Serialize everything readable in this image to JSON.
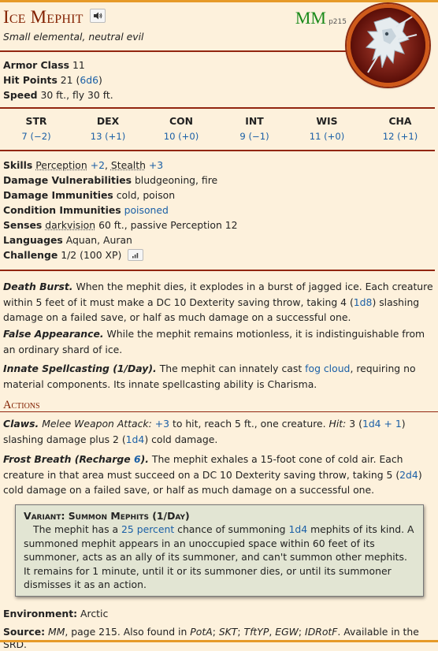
{
  "header": {
    "name": "Ice Mephit",
    "subtitle": "Small elemental, neutral evil",
    "source_abbr": "MM",
    "source_page": "p215",
    "sound_icon": "speaker-icon",
    "token_icon": "ice-mephit-token"
  },
  "basics": [
    {
      "label": "Armor Class",
      "value": "11"
    },
    {
      "label": "Hit Points",
      "value": "21 (",
      "link": "6d6",
      "suffix": ")"
    },
    {
      "label": "Speed",
      "value": "30 ft., fly 30 ft."
    }
  ],
  "abilities": [
    {
      "name": "STR",
      "value": "7 (−2)"
    },
    {
      "name": "DEX",
      "value": "13 (+1)"
    },
    {
      "name": "CON",
      "value": "10 (+0)"
    },
    {
      "name": "INT",
      "value": "9 (−1)"
    },
    {
      "name": "WIS",
      "value": "11 (+0)"
    },
    {
      "name": "CHA",
      "value": "12 (+1)"
    }
  ],
  "details": {
    "skills_label": "Skills",
    "skill1": "Perception",
    "skill1_mod": "+2",
    "skill2": "Stealth",
    "skill2_mod": "+3",
    "vuln_label": "Damage Vulnerabilities",
    "vuln_value": "bludgeoning, fire",
    "immune_label": "Damage Immunities",
    "immune_value": "cold, poison",
    "cond_label": "Condition Immunities",
    "cond_value": "poisoned",
    "senses_label": "Senses",
    "senses_link": "darkvision",
    "senses_value": "60 ft., passive Perception 12",
    "lang_label": "Languages",
    "lang_value": "Aquan, Auran",
    "cr_label": "Challenge",
    "cr_value": "1/2 (100 XP)"
  },
  "traits": {
    "death_head": "Death Burst.",
    "death_a": "When the mephit dies, it explodes in a burst of jagged ice. Each creature within 5 feet of it must make a DC 10 Dexterity saving throw, taking 4 (",
    "death_roll": "1d8",
    "death_b": ") slashing damage on a failed save, or half as much damage on a successful one.",
    "false_head": "False Appearance.",
    "false_text": "While the mephit remains motionless, it is indistinguishable from an ordinary shard of ice.",
    "innate_head": "Innate Spellcasting (1/Day).",
    "innate_a": "The mephit can innately cast ",
    "innate_spell": "fog cloud",
    "innate_b": ", requiring no material components. Its innate spellcasting ability is Charisma."
  },
  "actions": {
    "title": "Actions",
    "claws_head": "Claws.",
    "claws_type": "Melee Weapon Attack:",
    "claws_hit_mod": "+3",
    "claws_a": " to hit, reach 5 ft., one creature. ",
    "claws_hit_label": "Hit:",
    "claws_b": " 3 (",
    "claws_roll1": "1d4 + 1",
    "claws_c": ") slashing damage plus 2 (",
    "claws_roll2": "1d4",
    "claws_d": ") cold damage.",
    "frost_head_a": "Frost Breath (Recharge ",
    "frost_recharge": "6",
    "frost_head_b": ").",
    "frost_a": " The mephit exhales a 15-foot cone of cold air. Each creature in that area must succeed on a DC 10 Dexterity saving throw, taking 5 (",
    "frost_roll": "2d4",
    "frost_b": ") cold damage on a failed save, or half as much damage on a successful one."
  },
  "variant": {
    "title": "Variant: Summon Mephits (1/Day)",
    "a": "The mephit has a ",
    "chance": "25 percent",
    "b": " chance of summoning ",
    "roll": "1d4",
    "c": " mephits of its kind. A summoned mephit appears in an unoccupied space within 60 feet of its summoner, acts as an ally of its summoner, and can't summon other mephits. It remains for 1 minute, until it or its summoner dies, or until its summoner dismisses it as an action."
  },
  "footer": {
    "env_label": "Environment:",
    "env_value": "Arctic",
    "src_label": "Source:",
    "src_book": "MM",
    "src_a": ", page 215. Also found in ",
    "src_b1": "PotA",
    "src_sep1": "; ",
    "src_b2": "SKT",
    "src_sep2": "; ",
    "src_b3": "TftYP",
    "src_sep3": ", ",
    "src_b4": "EGW",
    "src_sep4": "; ",
    "src_b5": "IDRotF",
    "src_c": ". Available in the SRD."
  },
  "colors": {
    "accent": "#822000",
    "link": "#1a5fa6",
    "rule": "#922610",
    "bar": "#e69a28",
    "source": "#1a8a1a"
  }
}
